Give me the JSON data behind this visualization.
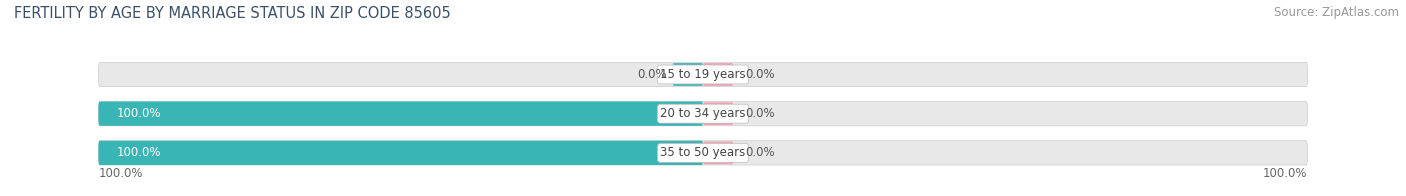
{
  "title": "FERTILITY BY AGE BY MARRIAGE STATUS IN ZIP CODE 85605",
  "source": "Source: ZipAtlas.com",
  "categories": [
    "15 to 19 years",
    "20 to 34 years",
    "35 to 50 years"
  ],
  "married_pct": [
    0.0,
    100.0,
    100.0
  ],
  "unmarried_pct": [
    0.0,
    0.0,
    0.0
  ],
  "married_color": "#3ab5b5",
  "unmarried_color": "#f4a0b5",
  "bar_bg_color": "#e8e8e8",
  "bar_height": 0.62,
  "title_fontsize": 10.5,
  "source_fontsize": 8.5,
  "label_fontsize": 8.5,
  "category_fontsize": 8.5,
  "legend_fontsize": 9,
  "axis_label_left": "100.0%",
  "axis_label_right": "100.0%"
}
